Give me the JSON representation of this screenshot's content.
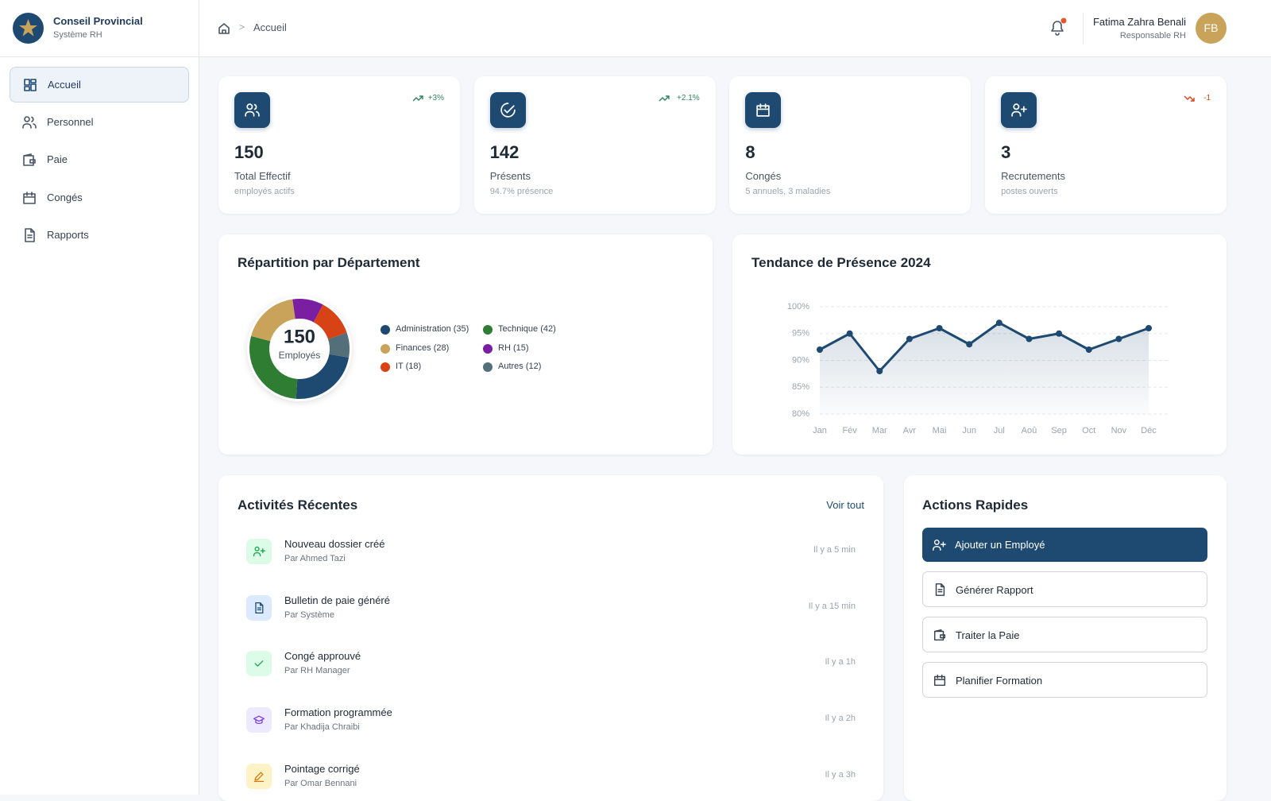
{
  "sidebar": {
    "brand": {
      "title": "Conseil Provincial",
      "subtitle": "Système RH"
    },
    "nav": [
      "Accueil",
      "Personnel",
      "Paie",
      "Congés",
      "Rapports"
    ]
  },
  "header": {
    "breadcrumb": "Accueil",
    "user": {
      "name": "Fatima Zahra Benali",
      "role": "Responsable RH",
      "initials": "FB"
    }
  },
  "stats": [
    {
      "value": "150",
      "label": "Total Effectif",
      "sub": "employés actifs",
      "trend": "+3%"
    },
    {
      "value": "142",
      "label": "Présents",
      "sub": "94.7% présence",
      "trend": "+2.1%"
    },
    {
      "value": "8",
      "label": "Congés",
      "sub": "5 annuels, 3 maladies",
      "trend": ""
    },
    {
      "value": "3",
      "label": "Recrutements",
      "sub": "postes ouverts",
      "trend": "-1"
    }
  ],
  "chart_data": [
    {
      "type": "pie",
      "title": "Répartition par Département",
      "center_value": "150",
      "center_label": "Employés",
      "categories": [
        "Administration (35)",
        "Technique (42)",
        "Finances (28)",
        "RH (15)",
        "IT (18)",
        "Autres (12)"
      ],
      "values": [
        35,
        42,
        28,
        15,
        18,
        12
      ],
      "colors": [
        "#1e4a72",
        "#2e7d32",
        "#c9a35a",
        "#7b1fa2",
        "#d84315",
        "#546e7a"
      ]
    },
    {
      "type": "line",
      "title": "Tendance de Présence 2024",
      "categories": [
        "Jan",
        "Fév",
        "Mar",
        "Avr",
        "Mai",
        "Jun",
        "Jul",
        "Aoû",
        "Sep",
        "Oct",
        "Nov",
        "Déc"
      ],
      "values": [
        92,
        95,
        88,
        94,
        96,
        93,
        97,
        94,
        95,
        92,
        94,
        96
      ],
      "color": "#1e4a72",
      "ylim": [
        80,
        100
      ],
      "yticks": [
        {
          "value": 80,
          "label": "80%"
        },
        {
          "value": 85,
          "label": "85%"
        },
        {
          "value": 90,
          "label": "90%"
        },
        {
          "value": 95,
          "label": "95%"
        },
        {
          "value": 100,
          "label": "100%"
        }
      ],
      "grid": true
    }
  ],
  "activities": {
    "title": "Activités Récentes",
    "link": "Voir tout",
    "items": [
      {
        "title": "Nouveau dossier créé",
        "by": "Par Ahmed Tazi",
        "time": "Il y a 5 min"
      },
      {
        "title": "Bulletin de paie généré",
        "by": "Par Système",
        "time": "Il y a 15 min"
      },
      {
        "title": "Congé approuvé",
        "by": "Par RH Manager",
        "time": "Il y a 1h"
      },
      {
        "title": "Formation programmée",
        "by": "Par Khadija Chraibi",
        "time": "Il y a 2h"
      },
      {
        "title": "Pointage corrigé",
        "by": "Par Omar Bennani",
        "time": "Il y a 3h"
      }
    ]
  },
  "quick_actions": {
    "title": "Actions Rapides",
    "items": [
      "Ajouter un Employé",
      "Générer Rapport",
      "Traiter la Paie",
      "Planifier Formation"
    ]
  }
}
